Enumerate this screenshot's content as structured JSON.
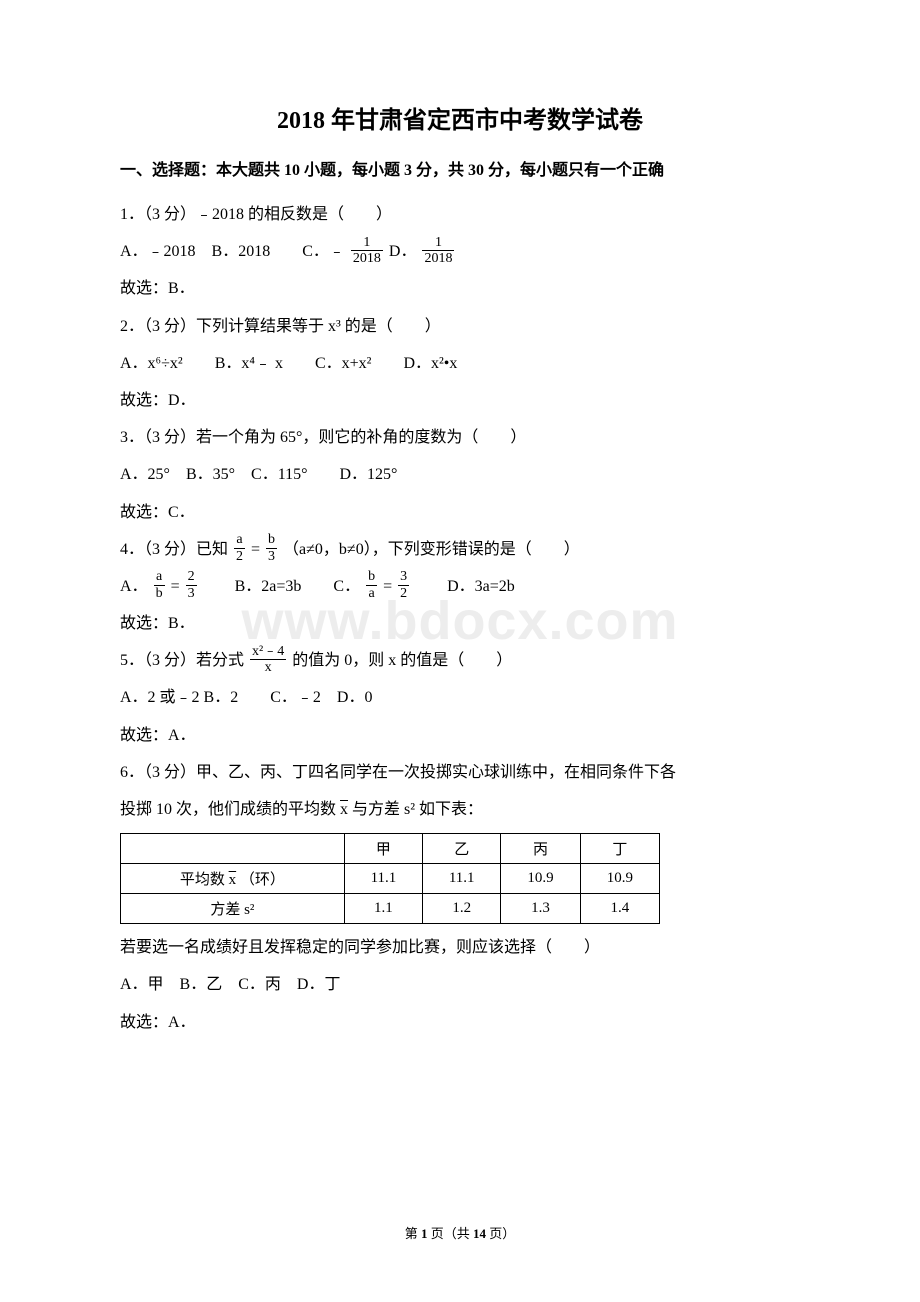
{
  "title": "2018 年甘肃省定西市中考数学试卷",
  "section1": "一、选择题：本大题共 10 小题，每小题 3 分，共 30 分，每小题只有一个正确",
  "q1": {
    "stem": "1．（3 分）﹣2018 的相反数是（　　）",
    "optA_pre": "A．﹣2018　B．2018　　C．﹣",
    "frac1": {
      "num": "1",
      "den": "2018"
    },
    "mid": " D．",
    "frac2": {
      "num": "1",
      "den": "2018"
    },
    "ans": "故选：B．"
  },
  "q2": {
    "stem": "2．（3 分）下列计算结果等于 x³ 的是（　　）",
    "opts": "A．x⁶÷x²　　B．x⁴﹣ x　　C．x+x²　　D．x²•x",
    "ans": "故选：D．"
  },
  "q3": {
    "stem": "3．（3 分）若一个角为 65°，则它的补角的度数为（　　）",
    "opts": "A．25°　B．35°　C．115°　　D．125°",
    "ans": "故选：C．"
  },
  "q4": {
    "stem_pre": "4．（3 分）已知",
    "frac_l": {
      "num": "a",
      "den": "2"
    },
    "eq": "=",
    "frac_r": {
      "num": "b",
      "den": "3"
    },
    "stem_post": "（a≠0，b≠0），下列变形错误的是（　　）",
    "optA_pre": "A．",
    "fracA": {
      "num": "a",
      "den": "b"
    },
    "eqA": "=",
    "fracA2": {
      "num": "2",
      "den": "3"
    },
    "optB": "　　B．2a=3b　　C．",
    "fracC": {
      "num": "b",
      "den": "a"
    },
    "eqC": "=",
    "fracC2": {
      "num": "3",
      "den": "2"
    },
    "optD": "　　D．3a=2b",
    "ans": "故选：B．"
  },
  "q5": {
    "stem_pre": "5．（3 分）若分式",
    "frac": {
      "num": "x²﹣4",
      "den": "x"
    },
    "stem_post": "的值为 0，则 x 的值是（　　）",
    "opts": "A．2 或﹣2 B．2　　C．﹣2　D．0",
    "ans": "故选：A．"
  },
  "q6": {
    "stem1": "6．（3 分）甲、乙、丙、丁四名同学在一次投掷实心球训练中，在相同条件下各",
    "stem2_pre": "投掷 10 次，他们成绩的平均数",
    "xbar": "x",
    "stem2_post": "与方差 s² 如下表：",
    "table": {
      "headers": [
        "",
        "甲",
        "乙",
        "丙",
        "丁"
      ],
      "row1_label_pre": "平均数",
      "row1_label_x": "x",
      "row1_label_post": "（环）",
      "row1": [
        "11.1",
        "11.1",
        "10.9",
        "10.9"
      ],
      "row2_label": "方差 s²",
      "row2": [
        "1.1",
        "1.2",
        "1.3",
        "1.4"
      ]
    },
    "post": "若要选一名成绩好且发挥稳定的同学参加比赛，则应该选择（　　）",
    "opts": "A．甲　B．乙　C．丙　D．丁",
    "ans": "故选：A．"
  },
  "watermark": "www.bdocx.com",
  "footer_pre": "第 ",
  "footer_page": "1",
  "footer_mid": " 页（共 ",
  "footer_total": "14",
  "footer_post": " 页）"
}
